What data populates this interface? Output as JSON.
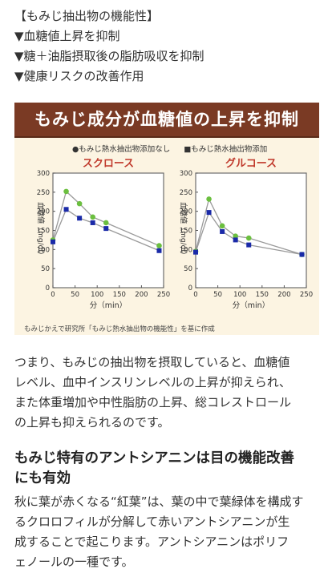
{
  "functions": {
    "title": "【もみじ抽出物の機能性】",
    "items": [
      "▼血糖値上昇を抑制",
      "▼糖＋油脂摂取後の脂肪吸収を抑制",
      "▼健康リスクの改善作用"
    ]
  },
  "figure": {
    "banner": "もみじ成分が血糖値の上昇を抑制",
    "legend": [
      "●もみじ熱水抽出物添加なし",
      "■もみじ熱水抽出物添加"
    ],
    "caption": "もみじかえで研究所「もみじ熱水抽出物の機能性」を基に作成",
    "xlabel": "分（min）",
    "ylabel": "血糖値（mg/dl）"
  },
  "chart_data": [
    {
      "type": "line",
      "title": "スクロース",
      "x": [
        0,
        30,
        60,
        90,
        120,
        240
      ],
      "series": [
        {
          "name": "もみじ熱水抽出物添加なし",
          "color": "#6bbf3f",
          "marker": "circle",
          "values": [
            125,
            252,
            220,
            185,
            170,
            110
          ]
        },
        {
          "name": "もみじ熱水抽出物添加",
          "color": "#1a2aa8",
          "marker": "square",
          "values": [
            120,
            205,
            182,
            170,
            155,
            97
          ]
        }
      ],
      "xlabel": "分（min）",
      "ylabel": "血糖値（mg/dl）",
      "xticks": [
        0,
        50,
        100,
        150,
        200,
        250
      ],
      "yticks": [
        0,
        50,
        100,
        150,
        200,
        250,
        300
      ],
      "xlim": [
        0,
        250
      ],
      "ylim": [
        0,
        300
      ],
      "grid": false,
      "legend": "top"
    },
    {
      "type": "line",
      "title": "グルコース",
      "x": [
        0,
        30,
        60,
        90,
        120,
        240
      ],
      "series": [
        {
          "name": "もみじ熱水抽出物添加なし",
          "color": "#6bbf3f",
          "marker": "circle",
          "values": [
            95,
            232,
            162,
            135,
            130,
            87
          ]
        },
        {
          "name": "もみじ熱水抽出物添加",
          "color": "#1a2aa8",
          "marker": "square",
          "values": [
            93,
            197,
            147,
            125,
            112,
            87
          ]
        }
      ],
      "xlabel": "分（min）",
      "ylabel": "血糖値（mg/dl）",
      "xticks": [
        0,
        50,
        100,
        150,
        200,
        250
      ],
      "yticks": [
        0,
        50,
        100,
        150,
        200,
        250,
        300
      ],
      "xlim": [
        0,
        250
      ],
      "ylim": [
        0,
        300
      ],
      "grid": false,
      "legend": "top"
    }
  ],
  "paragraph1": [
    "つまり、もみじの抽出物を摂取していると、血糖値",
    "レベル、血中インスリンレベルの上昇が抑えられ、",
    "また体重増加や中性脂肪の上昇、総コレストロール",
    "の上昇も抑えられるのです。"
  ],
  "heading": [
    "もみじ特有のアントシアニンは目の機能改善",
    "にも有効"
  ],
  "paragraph2": [
    "秋に葉が赤くなる“紅葉”は、葉の中で葉緑体を構成す",
    "るクロロフィルが分解して赤いアントシアニンが生",
    "成することで起こります。アントシアニンはポリフ",
    "ェノールの一種です。"
  ],
  "colors": {
    "banner_bg": "#7a3a24",
    "panel_title": "#c0392b",
    "panel_border": "#6d6d6d",
    "figure_bg": "#fcf4e2"
  }
}
